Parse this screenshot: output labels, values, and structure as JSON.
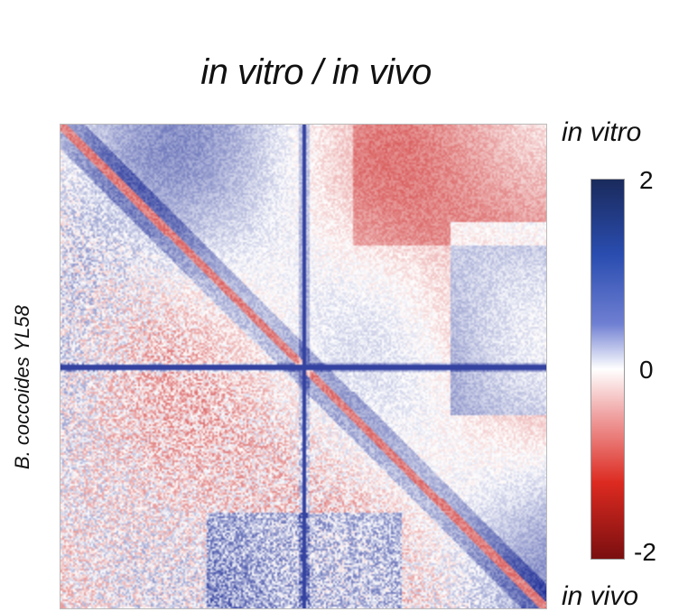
{
  "title": "in vitro / in vivo",
  "yaxis_label": "B. coccoides YL58",
  "corner_top": "in vitro",
  "corner_bottom": "in vivo",
  "colorbar": {
    "max_label": "2",
    "mid_label": "0",
    "min_label": "-2",
    "colors": [
      "#1a2a5c",
      "#2a4db0",
      "#ffffff",
      "#dc2a20",
      "#7a0f10"
    ]
  },
  "chart_data": {
    "type": "heatmap",
    "title": "in vitro / in vivo",
    "ylabel": "B. coccoides YL58",
    "upper_triangle": "in vitro",
    "lower_triangle": "in vivo",
    "value_range": [
      -2,
      2
    ],
    "colorscale": "blue (positive) - white (0) - red (negative)"
  }
}
